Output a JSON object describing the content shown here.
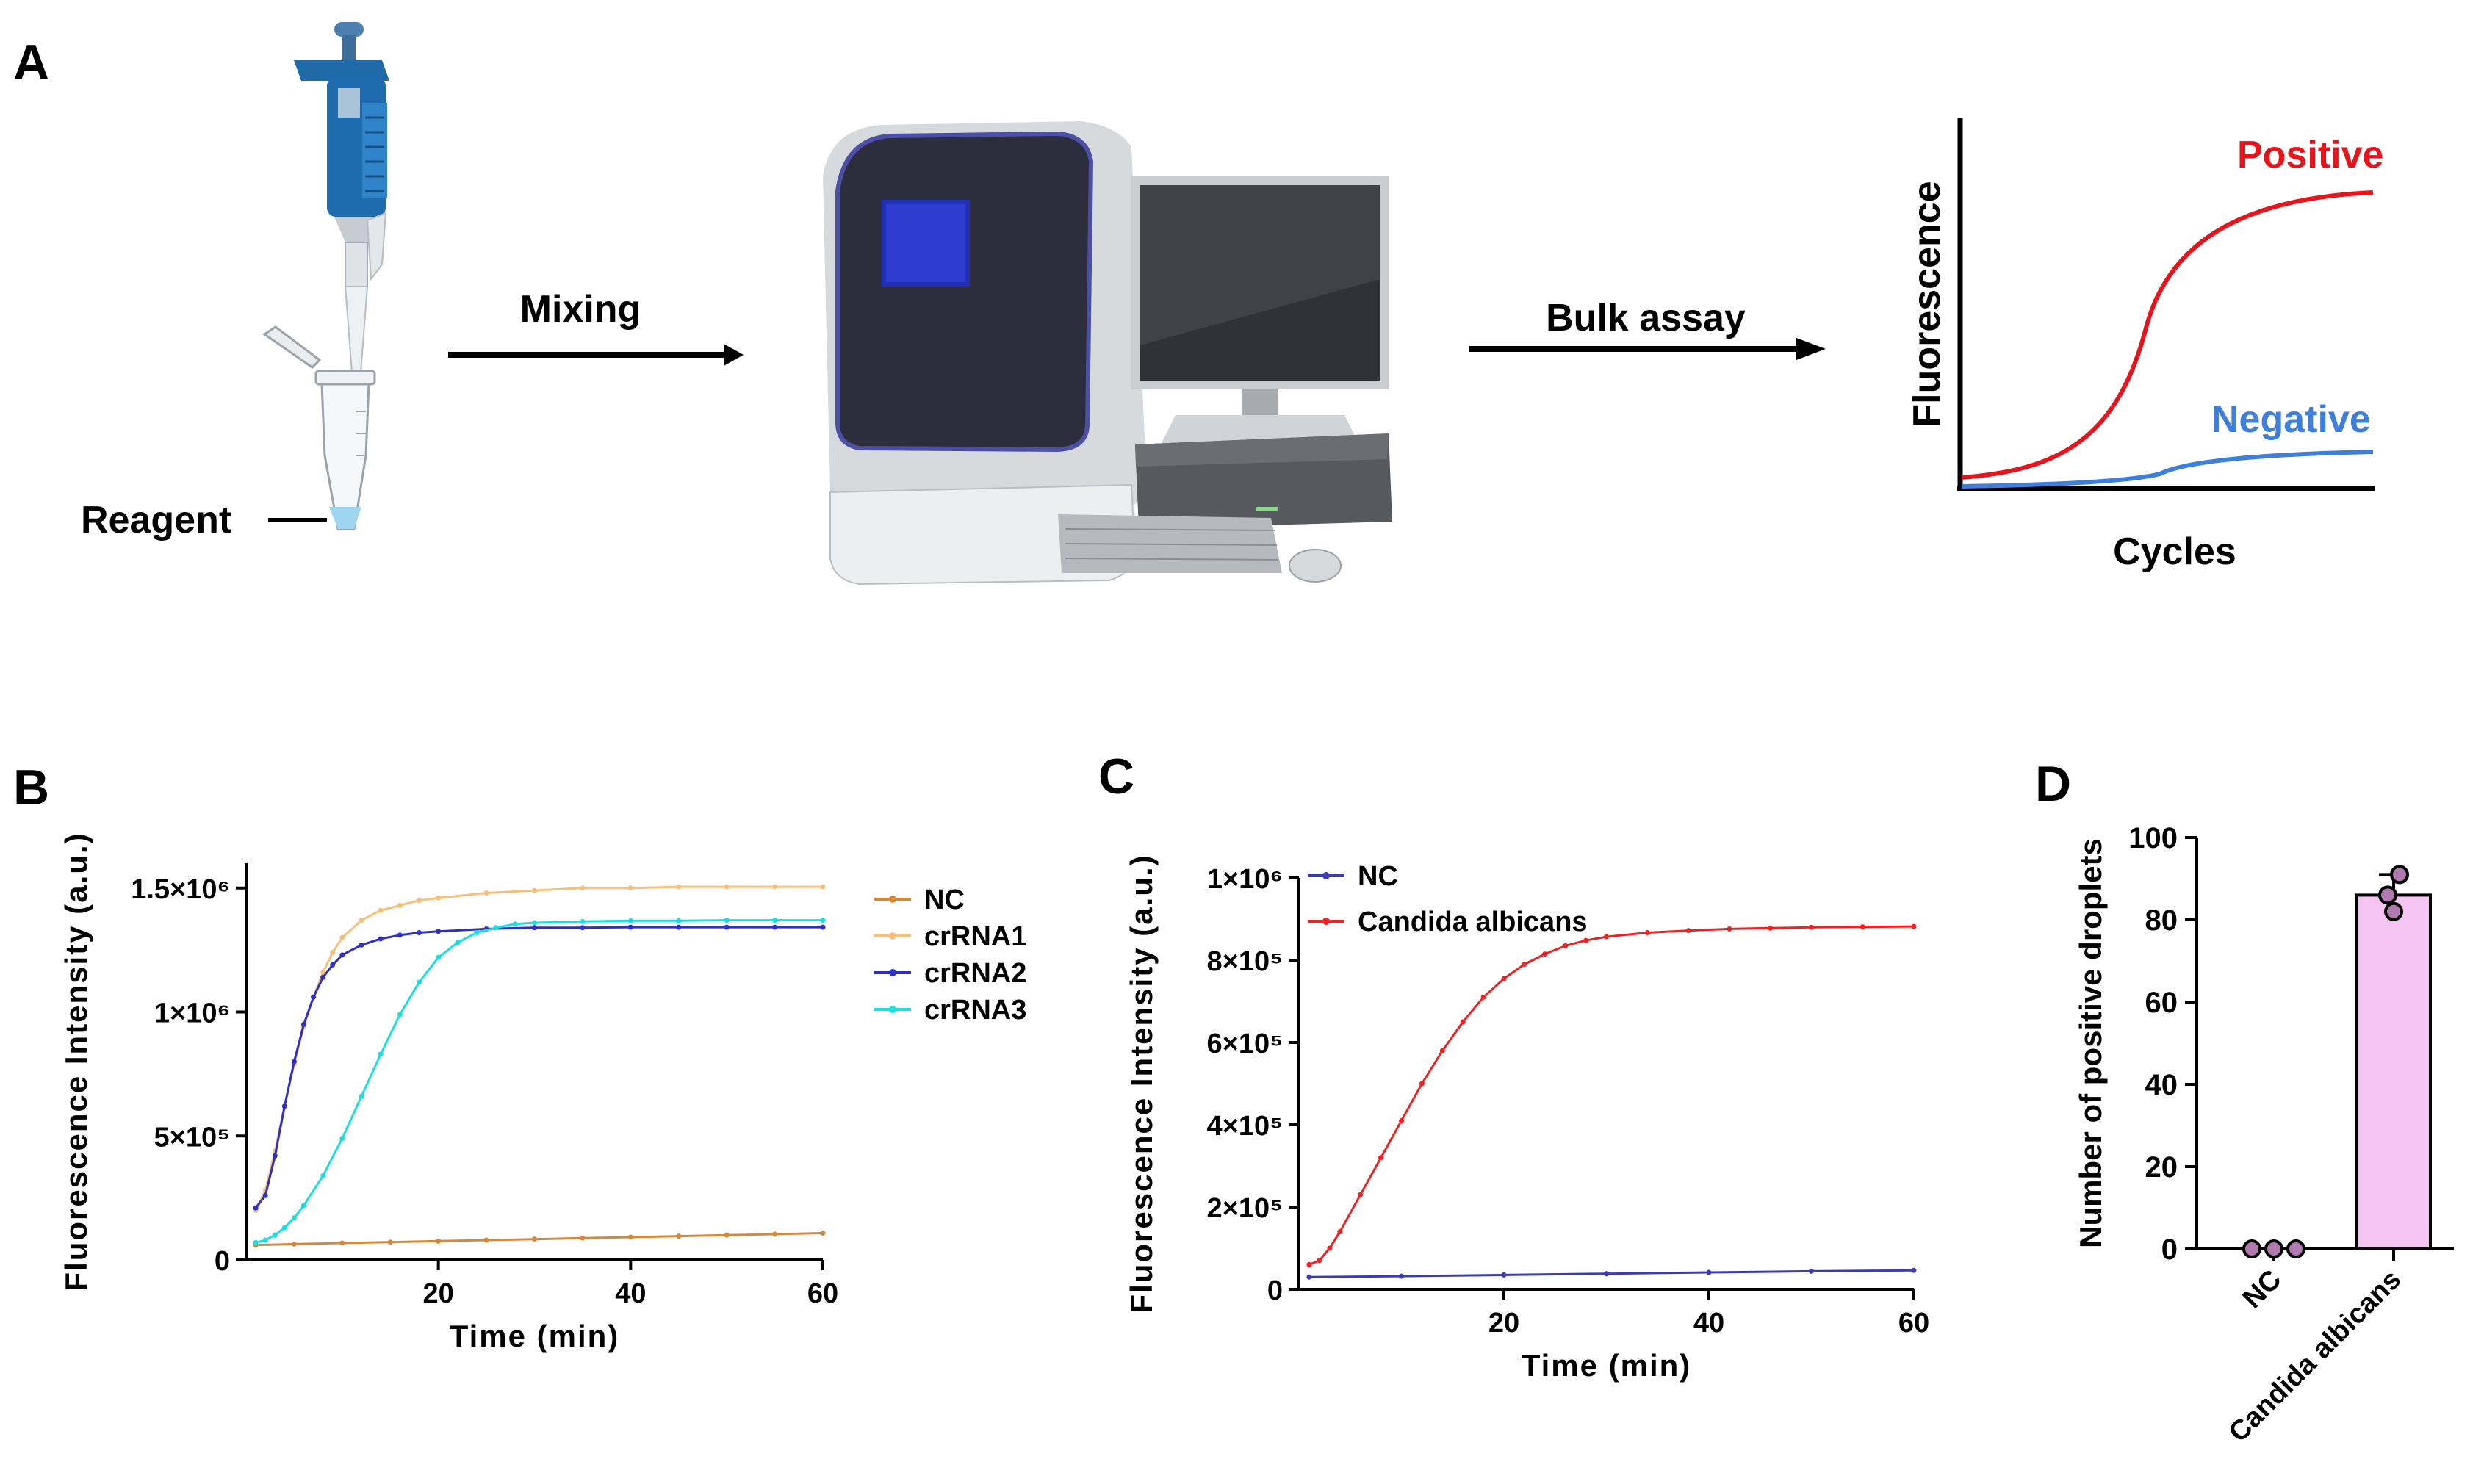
{
  "panels": {
    "A": {
      "letter": "A",
      "reagent_label": "Reagent",
      "arrow1_label": "Mixing",
      "arrow2_label": "Bulk assay",
      "curve": {
        "ylabel": "Fluorescence",
        "xlabel": "Cycles",
        "positive_label": "Positive",
        "negative_label": "Negative",
        "positive_color": "#e8141b",
        "negative_color": "#3e7fdc"
      }
    },
    "B": {
      "letter": "B"
    },
    "C": {
      "letter": "C"
    },
    "D": {
      "letter": "D"
    }
  },
  "chart_data": [
    {
      "id": "B",
      "type": "line",
      "xlabel": "Time (min)",
      "ylabel": "Fluorescence Intensity (a.u.)",
      "xlim": [
        0,
        60
      ],
      "ylim": [
        0,
        1600000
      ],
      "xticks": [
        20,
        40,
        60
      ],
      "xtick_labels": [
        "20",
        "40",
        "60"
      ],
      "yticks": [
        0,
        500000,
        1000000,
        1500000
      ],
      "ytick_labels": [
        "0",
        "5×10⁵",
        "1×10⁶",
        "1.5×10⁶"
      ],
      "legend_position": "right",
      "series": [
        {
          "name": "NC",
          "color": "#d4883a",
          "x": [
            1,
            5,
            10,
            15,
            20,
            25,
            30,
            35,
            40,
            45,
            50,
            55,
            60
          ],
          "y": [
            60000,
            64000,
            68000,
            72000,
            76000,
            80000,
            84000,
            88000,
            92000,
            96000,
            100000,
            104000,
            108000
          ]
        },
        {
          "name": "crRNA1",
          "color": "#f7c07a",
          "x": [
            1,
            2,
            3,
            4,
            5,
            6,
            7,
            8,
            9,
            10,
            12,
            14,
            16,
            18,
            20,
            25,
            30,
            35,
            40,
            45,
            50,
            55,
            60
          ],
          "y": [
            200000,
            280000,
            440000,
            620000,
            790000,
            940000,
            1060000,
            1160000,
            1240000,
            1300000,
            1370000,
            1410000,
            1430000,
            1450000,
            1460000,
            1480000,
            1490000,
            1500000,
            1500000,
            1505000,
            1505000,
            1505000,
            1505000
          ]
        },
        {
          "name": "crRNA2",
          "color": "#2d2fc8",
          "x": [
            1,
            2,
            3,
            4,
            5,
            6,
            7,
            8,
            9,
            10,
            12,
            14,
            16,
            18,
            20,
            25,
            30,
            35,
            40,
            45,
            50,
            55,
            60
          ],
          "y": [
            210000,
            260000,
            420000,
            620000,
            800000,
            950000,
            1060000,
            1140000,
            1190000,
            1230000,
            1270000,
            1295000,
            1310000,
            1320000,
            1325000,
            1335000,
            1340000,
            1340000,
            1342000,
            1342000,
            1342000,
            1342000,
            1342000
          ]
        },
        {
          "name": "crRNA3",
          "color": "#19e0e0",
          "x": [
            1,
            2,
            3,
            4,
            5,
            6,
            8,
            10,
            12,
            14,
            16,
            18,
            20,
            22,
            24,
            26,
            28,
            30,
            35,
            40,
            45,
            50,
            55,
            60
          ],
          "y": [
            70000,
            80000,
            100000,
            130000,
            170000,
            220000,
            340000,
            490000,
            660000,
            830000,
            990000,
            1120000,
            1220000,
            1280000,
            1320000,
            1340000,
            1355000,
            1360000,
            1365000,
            1368000,
            1368000,
            1370000,
            1370000,
            1370000
          ]
        }
      ]
    },
    {
      "id": "C",
      "type": "line",
      "xlabel": "Time (min)",
      "ylabel": "Fluorescence Intensity (a.u.)",
      "xlim": [
        0,
        60
      ],
      "ylim": [
        0,
        1000000
      ],
      "xticks": [
        20,
        40,
        60
      ],
      "xtick_labels": [
        "20",
        "40",
        "60"
      ],
      "yticks": [
        0,
        200000,
        400000,
        600000,
        800000,
        1000000
      ],
      "ytick_labels": [
        "0",
        "2×10⁵",
        "4×10⁵",
        "6×10⁵",
        "8×10⁵",
        "1×10⁶"
      ],
      "legend_position": "top-left",
      "series": [
        {
          "name": "NC",
          "color": "#3b3bb8",
          "x": [
            1,
            10,
            20,
            30,
            40,
            50,
            60
          ],
          "y": [
            30000,
            32000,
            35000,
            38000,
            41000,
            44000,
            46000
          ]
        },
        {
          "name": "Candida albicans",
          "color": "#ee2222",
          "x": [
            1,
            2,
            3,
            4,
            6,
            8,
            10,
            12,
            14,
            16,
            18,
            20,
            22,
            24,
            26,
            28,
            30,
            34,
            38,
            42,
            46,
            50,
            55,
            60
          ],
          "y": [
            60000,
            70000,
            100000,
            140000,
            230000,
            320000,
            410000,
            500000,
            580000,
            650000,
            710000,
            755000,
            790000,
            815000,
            835000,
            848000,
            857000,
            867000,
            872000,
            876000,
            878000,
            880000,
            881000,
            882000
          ]
        }
      ]
    },
    {
      "id": "D",
      "type": "bar",
      "ylabel": "Number of positive droplets",
      "ylim": [
        0,
        100
      ],
      "yticks": [
        0,
        20,
        40,
        60,
        80,
        100
      ],
      "ytick_labels": [
        "0",
        "20",
        "40",
        "60",
        "80",
        "100"
      ],
      "categories": [
        "NC",
        "Candida albicans"
      ],
      "values": [
        0,
        86
      ],
      "errors": [
        0,
        5
      ],
      "points": [
        [
          0,
          0,
          0
        ],
        [
          82,
          86,
          91
        ]
      ],
      "bar_color": "#f5c4f2",
      "point_color": "#b07ab0"
    }
  ]
}
